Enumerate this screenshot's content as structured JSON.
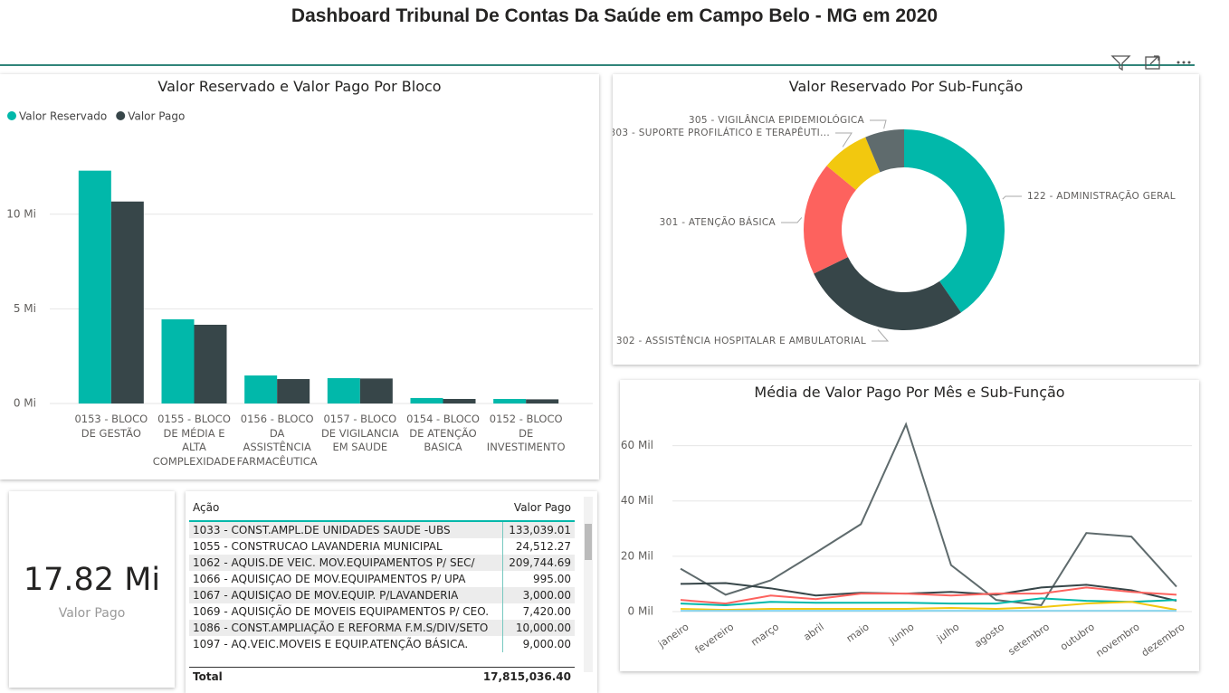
{
  "header": {
    "title": "Dashboard Tribunal De Contas Da Saúde em Campo Belo - MG em 2020"
  },
  "chart_data": [
    {
      "type": "bar",
      "title": "Valor Reservado e Valor Pago Por Bloco",
      "categories": [
        "0153 - BLOCO DE GESTÃO",
        "0155 - BLOCO DE MÉDIA E ALTA COMPLEXIDADE",
        "0156 - BLOCO DA ASSISTÊNCIA FARMACÊUTICA",
        "0157 - BLOCO DE VIGILANCIA EM SAUDE",
        "0154 - BLOCO DE ATENÇÃO BASICA",
        "0152 - BLOCO DE INVESTIMENTO"
      ],
      "series": [
        {
          "name": "Valor Reservado",
          "color": "#01b8aa",
          "values": [
            12.3,
            4.45,
            1.48,
            1.34,
            0.29,
            0.24
          ]
        },
        {
          "name": "Valor Pago",
          "color": "#374649",
          "values": [
            10.67,
            4.16,
            1.29,
            1.32,
            0.24,
            0.22
          ]
        }
      ],
      "ylim": [
        0,
        13
      ],
      "yticks": [
        {
          "value": 0,
          "label": "0 Mi"
        },
        {
          "value": 5,
          "label": "5 Mi"
        },
        {
          "value": 10,
          "label": "10 Mi"
        }
      ],
      "grid": true,
      "legend": "top-left"
    },
    {
      "type": "donut",
      "title": "Valor Reservado Por Sub-Função",
      "categories": [
        "122 - ADMINISTRAÇÃO GERAL",
        "302 - ASSISTÊNCIA HOSPITALAR E AMBULATORIAL",
        "301 - ATENÇÃO BÁSICA",
        "303 - SUPORTE PROFILÁTICO E TERAPÊUTI...",
        "305 - VIGILÂNCIA EPIDEMIOLÓGICA"
      ],
      "values": [
        40.4,
        27.4,
        18.2,
        7.7,
        6.3
      ],
      "colors": [
        "#01b8aa",
        "#374649",
        "#fd625e",
        "#f2c80f",
        "#5f6b6d"
      ]
    },
    {
      "type": "line",
      "title": "Média de Valor Pago Por Mês e Sub-Função",
      "categories": [
        "janeiro",
        "fevereiro",
        "março",
        "abril",
        "maio",
        "junho",
        "julho",
        "agosto",
        "setembro",
        "outubro",
        "novembro",
        "dezembro"
      ],
      "series": [
        {
          "color": "#5f6b6d",
          "values": [
            15.5,
            6.1,
            11.3,
            21.3,
            31.6,
            67.7,
            16.8,
            4.2,
            2.3,
            28.4,
            27.1,
            9.0
          ]
        },
        {
          "color": "#374649",
          "values": [
            10,
            10.3,
            8.4,
            5.8,
            6.8,
            6.5,
            7.1,
            6.1,
            8.7,
            9.7,
            7.7,
            3.9
          ]
        },
        {
          "color": "#fd625e",
          "values": [
            4.2,
            2.9,
            5.8,
            4.5,
            6.5,
            6.5,
            5.8,
            6.5,
            6.5,
            8.7,
            7.1,
            6.1
          ]
        },
        {
          "color": "#01b8aa",
          "values": [
            2.9,
            2.3,
            3.5,
            3.2,
            3.2,
            3.2,
            2.9,
            2.9,
            4.8,
            3.9,
            3.5,
            4.2
          ]
        },
        {
          "color": "#f2c80f",
          "values": [
            1,
            0.6,
            1,
            1,
            1,
            1,
            1.3,
            1,
            1.6,
            2.9,
            3.5,
            0.6
          ]
        },
        {
          "color": "#8ad4eb",
          "values": [
            0.3,
            0.3,
            0.3,
            0.3,
            0.3,
            0.3,
            0.3,
            0.3,
            0.3,
            0.3,
            0.3,
            0.3
          ]
        }
      ],
      "ylim": [
        0,
        70
      ],
      "yticks": [
        {
          "value": 0,
          "label": "0 Mil"
        },
        {
          "value": 20,
          "label": "20 Mil"
        },
        {
          "value": 40,
          "label": "40 Mil"
        },
        {
          "value": 60,
          "label": "60 Mil"
        }
      ],
      "grid": true
    }
  ],
  "card": {
    "value": "17.82 Mi",
    "label": "Valor Pago"
  },
  "table": {
    "columns": [
      "Ação",
      "Valor Pago"
    ],
    "rows": [
      [
        "1033 - CONST.AMPL.DE UNIDADES SAUDE -UBS",
        "133,039.01"
      ],
      [
        "1055 - CONSTRUCAO LAVANDERIA MUNICIPAL",
        "24,512.27"
      ],
      [
        "1062 - AQUIS.DE VEIC. MOV.EQUIPAMENTOS P/ SEC/",
        "209,744.69"
      ],
      [
        "1066 - AQUISIÇAO DE MOV.EQUIPAMENTOS P/ UPA",
        "995.00"
      ],
      [
        "1067 - AQUISIÇAO DE MOV.EQUIP. P/LAVANDERIA",
        "3,000.00"
      ],
      [
        "1069 - AQUISIÇÃO DE MOVEIS EQUIPAMENTOS P/ CEO.",
        "7,420.00"
      ],
      [
        "1086 - CONST.AMPLIAÇÃO E REFORMA F.M.S/DIV/SETO",
        "10,000.00"
      ],
      [
        "1097 - AQ.VEIC.MOVEIS E EQUIP.ATENÇÃO BÁSICA.",
        "9,000.00"
      ]
    ],
    "total": [
      "Total",
      "17,815,036.40"
    ]
  }
}
